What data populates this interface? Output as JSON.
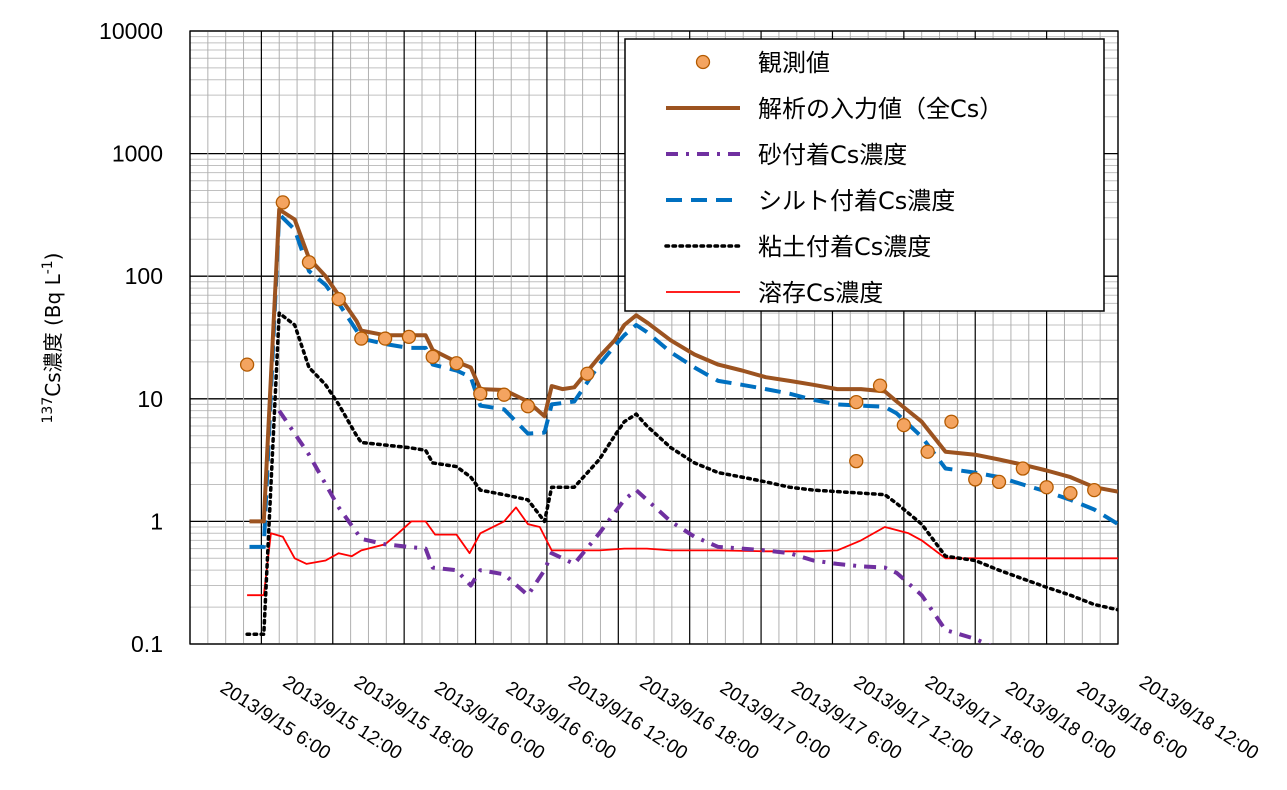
{
  "chart_data": {
    "type": "line",
    "ylabel": {
      "superscript": "137",
      "main": "Cs濃度 (Bq L",
      "exp": "-1",
      "close": ")"
    },
    "yscale": "log",
    "ylim": [
      0.1,
      10000
    ],
    "y_ticks": [
      "10000",
      "1000",
      "100",
      "10",
      "1",
      "0.1"
    ],
    "xlim": [
      0,
      78
    ],
    "x_unit": "hours since 2013/9/15 0:00",
    "x_tick_labels": [
      "2013/9/15 6:00",
      "2013/9/15 12:00",
      "2013/9/15 18:00",
      "2013/9/16 0:00",
      "2013/9/16 6:00",
      "2013/9/16 12:00",
      "2013/9/16 18:00",
      "2013/9/17 0:00",
      "2013/9/17 6:00",
      "2013/9/17 12:00",
      "2013/9/17 18:00",
      "2013/9/18 0:00",
      "2013/9/18 6:00",
      "2013/9/18 12:00"
    ],
    "grid": true,
    "legend_position": "top-right",
    "series": [
      {
        "name": "観測値",
        "style": "points",
        "color": "#F4A460",
        "edge": "#B35A00",
        "points": [
          [
            4.8,
            19
          ],
          [
            7.8,
            400
          ],
          [
            10,
            130
          ],
          [
            12.5,
            65
          ],
          [
            14.4,
            31
          ],
          [
            16.4,
            31
          ],
          [
            18.4,
            32
          ],
          [
            20.4,
            22
          ],
          [
            22.4,
            19.5
          ],
          [
            24.4,
            11
          ],
          [
            26.4,
            10.8
          ],
          [
            28.4,
            8.7
          ],
          [
            33.4,
            16
          ],
          [
            56,
            9.4
          ],
          [
            56,
            3.1
          ],
          [
            58,
            12.8
          ],
          [
            60,
            6.1
          ],
          [
            62,
            3.7
          ],
          [
            64,
            6.5
          ],
          [
            66,
            2.2
          ],
          [
            68,
            2.1
          ],
          [
            70,
            2.7
          ],
          [
            72,
            1.9
          ],
          [
            74,
            1.7
          ],
          [
            76,
            1.8
          ]
        ]
      },
      {
        "name": "解析の入力値（全Cs）",
        "style": "solid",
        "color": "#9C5320",
        "width": 4,
        "points": [
          [
            5,
            1
          ],
          [
            6.2,
            1
          ],
          [
            7.5,
            350
          ],
          [
            8.8,
            290
          ],
          [
            10,
            140
          ],
          [
            11.4,
            100
          ],
          [
            12.5,
            70
          ],
          [
            14,
            43
          ],
          [
            14.4,
            36
          ],
          [
            16.4,
            33
          ],
          [
            18.4,
            33
          ],
          [
            19.8,
            33
          ],
          [
            20.4,
            25
          ],
          [
            22.4,
            20
          ],
          [
            23.6,
            18
          ],
          [
            24.4,
            12
          ],
          [
            26.4,
            11.8
          ],
          [
            28.4,
            9.5
          ],
          [
            29.8,
            7.2
          ],
          [
            30.4,
            12.7
          ],
          [
            31.3,
            12
          ],
          [
            32.3,
            12.4
          ],
          [
            34.4,
            22
          ],
          [
            35.7,
            30
          ],
          [
            36.5,
            40
          ],
          [
            37.5,
            48
          ],
          [
            38.4,
            42
          ],
          [
            40.4,
            30
          ],
          [
            42.4,
            23
          ],
          [
            44.4,
            19
          ],
          [
            46.4,
            17
          ],
          [
            48.4,
            15
          ],
          [
            50.4,
            14
          ],
          [
            52.4,
            13
          ],
          [
            54.4,
            12
          ],
          [
            56.4,
            12
          ],
          [
            58.4,
            11.5
          ],
          [
            59.4,
            9.5
          ],
          [
            61.5,
            6.5
          ],
          [
            63.5,
            3.7
          ],
          [
            66,
            3.5
          ],
          [
            68,
            3.2
          ],
          [
            70,
            2.9
          ],
          [
            72,
            2.6
          ],
          [
            74,
            2.3
          ],
          [
            76,
            1.9
          ],
          [
            78,
            1.75
          ]
        ]
      },
      {
        "name": "砂付着Cs濃度",
        "style": "dashdot",
        "color": "#7030A0",
        "width": 4,
        "points": [
          [
            7.5,
            8
          ],
          [
            10,
            3.5
          ],
          [
            12.5,
            1.3
          ],
          [
            14.4,
            0.72
          ],
          [
            16.4,
            0.65
          ],
          [
            18.4,
            0.62
          ],
          [
            19.8,
            0.6
          ],
          [
            20.4,
            0.42
          ],
          [
            22.4,
            0.4
          ],
          [
            23.6,
            0.3
          ],
          [
            24.4,
            0.4
          ],
          [
            26.4,
            0.37
          ],
          [
            28.4,
            0.25
          ],
          [
            29.8,
            0.4
          ],
          [
            30.4,
            0.55
          ],
          [
            32.3,
            0.45
          ],
          [
            34.4,
            0.8
          ],
          [
            36.5,
            1.5
          ],
          [
            37.5,
            1.8
          ],
          [
            38.4,
            1.5
          ],
          [
            40.4,
            1
          ],
          [
            42.4,
            0.75
          ],
          [
            44.4,
            0.62
          ],
          [
            46.4,
            0.6
          ],
          [
            48.4,
            0.58
          ],
          [
            50.4,
            0.55
          ],
          [
            52.4,
            0.48
          ],
          [
            54.4,
            0.45
          ],
          [
            56.4,
            0.43
          ],
          [
            58.4,
            0.42
          ],
          [
            59.4,
            0.38
          ],
          [
            61.5,
            0.25
          ],
          [
            63.5,
            0.13
          ],
          [
            66,
            0.11
          ],
          [
            68,
            0.09
          ]
        ]
      },
      {
        "name": "シルト付着Cs濃度",
        "style": "dashed",
        "color": "#0070C0",
        "width": 4,
        "points": [
          [
            5,
            0.62
          ],
          [
            6.2,
            0.62
          ],
          [
            7.5,
            320
          ],
          [
            8.8,
            240
          ],
          [
            10,
            110
          ],
          [
            11.4,
            85
          ],
          [
            12.5,
            60
          ],
          [
            14,
            36
          ],
          [
            14.4,
            31
          ],
          [
            16.4,
            28
          ],
          [
            18.4,
            26
          ],
          [
            19.8,
            26
          ],
          [
            20.4,
            19
          ],
          [
            22.4,
            17
          ],
          [
            23.6,
            15
          ],
          [
            24.4,
            8.8
          ],
          [
            26.4,
            8.2
          ],
          [
            28.4,
            5.2
          ],
          [
            29.8,
            5.3
          ],
          [
            30.4,
            9
          ],
          [
            32.3,
            9.5
          ],
          [
            34.4,
            19
          ],
          [
            35.7,
            27
          ],
          [
            36.5,
            33
          ],
          [
            37.5,
            40
          ],
          [
            38.4,
            35
          ],
          [
            40.4,
            24
          ],
          [
            42.4,
            18
          ],
          [
            44.4,
            14
          ],
          [
            46.4,
            13
          ],
          [
            48.4,
            12
          ],
          [
            50.4,
            11
          ],
          [
            52.4,
            9.8
          ],
          [
            54.4,
            9
          ],
          [
            56.4,
            8.8
          ],
          [
            58.4,
            8.6
          ],
          [
            59.4,
            7.6
          ],
          [
            61.5,
            4.9
          ],
          [
            63.5,
            2.7
          ],
          [
            66,
            2.5
          ],
          [
            68,
            2.3
          ],
          [
            70,
            2
          ],
          [
            72,
            1.75
          ],
          [
            74,
            1.5
          ],
          [
            76,
            1.25
          ],
          [
            78,
            0.95
          ]
        ]
      },
      {
        "name": "粘土付着Cs濃度",
        "style": "dotted",
        "color": "#000000",
        "width": 3.5,
        "points": [
          [
            4.8,
            0.12
          ],
          [
            6.2,
            0.12
          ],
          [
            7.5,
            50
          ],
          [
            8.8,
            40
          ],
          [
            10,
            18
          ],
          [
            11.4,
            13
          ],
          [
            12.5,
            9
          ],
          [
            14,
            5
          ],
          [
            14.4,
            4.4
          ],
          [
            16.4,
            4.2
          ],
          [
            18.4,
            4
          ],
          [
            19.8,
            3.8
          ],
          [
            20.4,
            3
          ],
          [
            22.4,
            2.8
          ],
          [
            23.6,
            2.3
          ],
          [
            24.4,
            1.8
          ],
          [
            26.4,
            1.65
          ],
          [
            28.4,
            1.5
          ],
          [
            29.8,
            1
          ],
          [
            30.4,
            1.9
          ],
          [
            32.3,
            1.9
          ],
          [
            34.4,
            3.2
          ],
          [
            35.7,
            5
          ],
          [
            36.5,
            6.5
          ],
          [
            37.5,
            7.5
          ],
          [
            38.4,
            6
          ],
          [
            40.4,
            4
          ],
          [
            42.4,
            3
          ],
          [
            44.4,
            2.5
          ],
          [
            46.4,
            2.3
          ],
          [
            48.4,
            2.1
          ],
          [
            50.4,
            1.9
          ],
          [
            52.4,
            1.8
          ],
          [
            54.4,
            1.75
          ],
          [
            56.4,
            1.7
          ],
          [
            58.4,
            1.65
          ],
          [
            59.4,
            1.4
          ],
          [
            61.5,
            0.95
          ],
          [
            63.5,
            0.52
          ],
          [
            66,
            0.48
          ],
          [
            68,
            0.4
          ],
          [
            70,
            0.34
          ],
          [
            72,
            0.29
          ],
          [
            74,
            0.25
          ],
          [
            76,
            0.21
          ],
          [
            78,
            0.19
          ]
        ]
      },
      {
        "name": "溶存Cs濃度",
        "style": "solid",
        "color": "#FF0000",
        "width": 1.8,
        "points": [
          [
            4.8,
            0.25
          ],
          [
            6.2,
            0.25
          ],
          [
            6.8,
            0.8
          ],
          [
            7.8,
            0.75
          ],
          [
            8.8,
            0.5
          ],
          [
            9.8,
            0.45
          ],
          [
            11.4,
            0.48
          ],
          [
            12.5,
            0.55
          ],
          [
            13.6,
            0.52
          ],
          [
            14.4,
            0.58
          ],
          [
            16.4,
            0.65
          ],
          [
            17.5,
            0.8
          ],
          [
            18.6,
            1
          ],
          [
            19.8,
            1
          ],
          [
            20.6,
            0.78
          ],
          [
            22.4,
            0.78
          ],
          [
            23.5,
            0.55
          ],
          [
            24.4,
            0.8
          ],
          [
            26.4,
            1
          ],
          [
            27.4,
            1.3
          ],
          [
            28.4,
            0.95
          ],
          [
            29.4,
            0.9
          ],
          [
            30.4,
            0.58
          ],
          [
            32.3,
            0.58
          ],
          [
            34.4,
            0.58
          ],
          [
            36.5,
            0.6
          ],
          [
            38.4,
            0.6
          ],
          [
            40.4,
            0.58
          ],
          [
            44.4,
            0.58
          ],
          [
            48.4,
            0.57
          ],
          [
            52.4,
            0.57
          ],
          [
            54.4,
            0.58
          ],
          [
            56.4,
            0.7
          ],
          [
            58.4,
            0.9
          ],
          [
            60.4,
            0.8
          ],
          [
            61.5,
            0.7
          ],
          [
            63.5,
            0.5
          ],
          [
            66,
            0.5
          ],
          [
            70,
            0.5
          ],
          [
            74,
            0.5
          ],
          [
            78,
            0.5
          ]
        ]
      }
    ]
  }
}
